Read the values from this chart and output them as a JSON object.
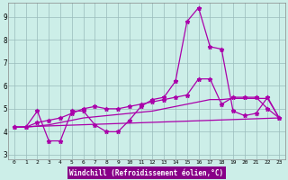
{
  "xlabel": "Windchill (Refroidissement éolien,°C)",
  "bg_color": "#cceee8",
  "grid_color": "#99bbbb",
  "line_color": "#aa00aa",
  "xmin": -0.5,
  "xmax": 23.5,
  "ymin": 2.8,
  "ymax": 9.6,
  "yticks": [
    3,
    4,
    5,
    6,
    7,
    8,
    9
  ],
  "xticks": [
    0,
    1,
    2,
    3,
    4,
    5,
    6,
    7,
    8,
    9,
    10,
    11,
    12,
    13,
    14,
    15,
    16,
    17,
    18,
    19,
    20,
    21,
    22,
    23
  ],
  "line1_x": [
    0,
    1,
    2,
    3,
    4,
    5,
    6,
    7,
    8,
    9,
    10,
    11,
    12,
    13,
    14,
    15,
    16,
    17,
    18,
    19,
    20,
    21,
    22,
    23
  ],
  "line1_y": [
    4.2,
    4.2,
    4.9,
    3.6,
    3.6,
    4.9,
    4.9,
    4.3,
    4.0,
    4.0,
    4.5,
    5.1,
    5.4,
    5.5,
    6.2,
    8.8,
    9.4,
    7.7,
    7.6,
    4.9,
    4.7,
    4.8,
    5.5,
    4.6
  ],
  "line2_x": [
    0,
    1,
    2,
    3,
    4,
    5,
    6,
    7,
    8,
    9,
    10,
    11,
    12,
    13,
    14,
    15,
    16,
    17,
    18,
    19,
    20,
    21,
    22,
    23
  ],
  "line2_y": [
    4.2,
    4.2,
    4.25,
    4.3,
    4.4,
    4.5,
    4.6,
    4.65,
    4.7,
    4.75,
    4.8,
    4.85,
    4.9,
    5.0,
    5.1,
    5.2,
    5.3,
    5.4,
    5.4,
    5.45,
    5.45,
    5.45,
    5.45,
    4.6
  ],
  "line3_x": [
    0,
    23
  ],
  "line3_y": [
    4.2,
    4.6
  ],
  "line4_x": [
    0,
    1,
    2,
    3,
    4,
    5,
    6,
    7,
    8,
    9,
    10,
    11,
    12,
    13,
    14,
    15,
    16,
    17,
    18,
    19,
    20,
    21,
    22,
    23
  ],
  "line4_y": [
    4.2,
    4.2,
    4.4,
    4.5,
    4.6,
    4.8,
    5.0,
    5.1,
    5.0,
    5.0,
    5.1,
    5.2,
    5.3,
    5.4,
    5.5,
    5.6,
    6.3,
    6.3,
    5.2,
    5.5,
    5.5,
    5.5,
    5.0,
    4.6
  ],
  "xlabel_bg": "#880088",
  "xlabel_fg": "#ffffff"
}
